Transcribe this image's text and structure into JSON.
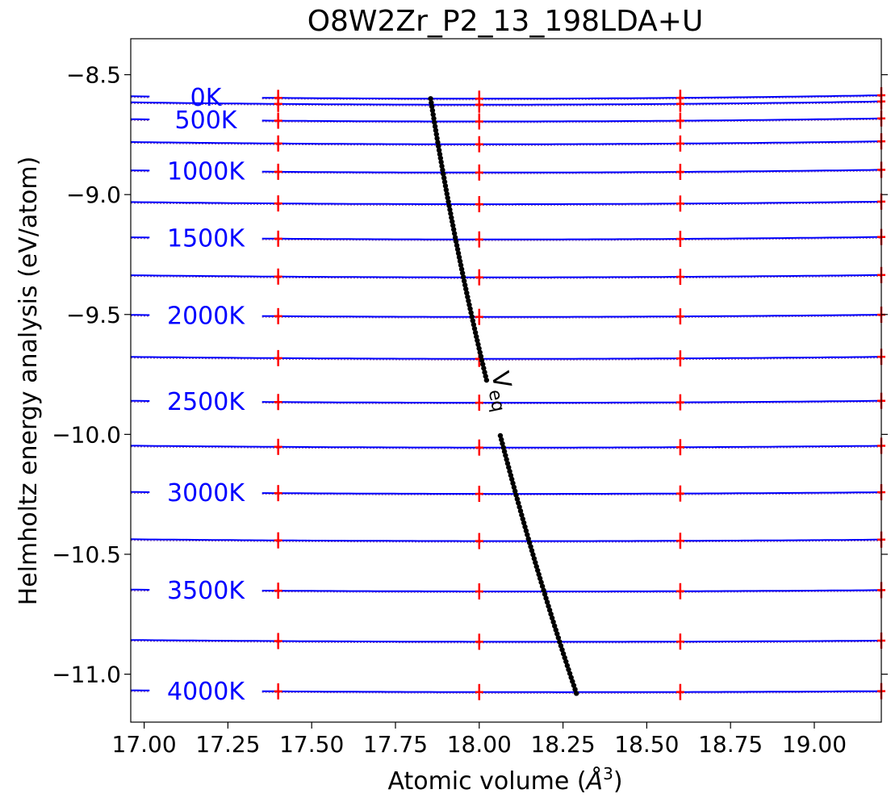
{
  "chart_data": {
    "type": "line",
    "title": "O8W2Zr_P2_13_198LDA+U",
    "xlabel_prefix": "Atomic volume (",
    "xlabel_unit": "Å",
    "xlabel_exp": "3",
    "xlabel_suffix": ")",
    "ylabel": "Helmholtz energy analysis (eV/atom)",
    "xlim": [
      16.96,
      19.2
    ],
    "ylim": [
      -11.2,
      -8.35
    ],
    "xticks": [
      17.0,
      17.25,
      17.5,
      17.75,
      18.0,
      18.25,
      18.5,
      18.75,
      19.0
    ],
    "xtick_labels": [
      "17.00",
      "17.25",
      "17.50",
      "17.75",
      "18.00",
      "18.25",
      "18.50",
      "18.75",
      "19.00"
    ],
    "yticks": [
      -8.5,
      -9.0,
      -9.5,
      -10.0,
      -10.5,
      -11.0
    ],
    "ytick_labels": [
      "−8.5",
      "−9.0",
      "−9.5",
      "−10.0",
      "−10.5",
      "−11.0"
    ],
    "sample_volumes": [
      17.4,
      18.0,
      18.6,
      19.2
    ],
    "line_color": "#0000ff",
    "marker_color": "#ff0000",
    "veq_color": "#000000",
    "isotherms": [
      {
        "T": 0,
        "a": 0.0096,
        "v0": 17.985,
        "f0": -8.6
      },
      {
        "T": 250,
        "a": 0.0092,
        "v0": 17.99,
        "f0": -8.625
      },
      {
        "T": 500,
        "a": 0.0088,
        "v0": 18.0,
        "f0": -8.695
      },
      {
        "T": 750,
        "a": 0.0085,
        "v0": 18.01,
        "f0": -8.79
      },
      {
        "T": 1000,
        "a": 0.0082,
        "v0": 18.02,
        "f0": -8.908
      },
      {
        "T": 1250,
        "a": 0.0079,
        "v0": 18.03,
        "f0": -9.04
      },
      {
        "T": 1500,
        "a": 0.0076,
        "v0": 18.04,
        "f0": -9.187
      },
      {
        "T": 1750,
        "a": 0.0073,
        "v0": 18.05,
        "f0": -9.345
      },
      {
        "T": 2000,
        "a": 0.007,
        "v0": 18.06,
        "f0": -9.51
      },
      {
        "T": 2250,
        "a": 0.0067,
        "v0": 18.07,
        "f0": -9.685
      },
      {
        "T": 2500,
        "a": 0.0064,
        "v0": 18.08,
        "f0": -9.868
      },
      {
        "T": 2750,
        "a": 0.0061,
        "v0": 18.1,
        "f0": -10.055
      },
      {
        "T": 3000,
        "a": 0.0058,
        "v0": 18.12,
        "f0": -10.248
      },
      {
        "T": 3250,
        "a": 0.0055,
        "v0": 18.14,
        "f0": -10.445
      },
      {
        "T": 3500,
        "a": 0.0052,
        "v0": 18.17,
        "f0": -10.655
      },
      {
        "T": 3750,
        "a": 0.0049,
        "v0": 18.2,
        "f0": -10.865
      },
      {
        "T": 4000,
        "a": 0.0046,
        "v0": 18.25,
        "f0": -11.075
      }
    ],
    "isotherm_labels": [
      {
        "text": "0K",
        "T": 0
      },
      {
        "text": "500K",
        "T": 500
      },
      {
        "text": "1000K",
        "T": 1000
      },
      {
        "text": "1500K",
        "T": 1500
      },
      {
        "text": "2000K",
        "T": 2000
      },
      {
        "text": "2500K",
        "T": 2500
      },
      {
        "text": "3000K",
        "T": 3000
      },
      {
        "text": "3500K",
        "T": 3500
      },
      {
        "text": "4000K",
        "T": 4000
      }
    ],
    "veq_label_main": "V",
    "veq_label_sub": "eq",
    "veq_curve": {
      "v_start": 17.855,
      "f_start": -8.6,
      "v_end": 18.29,
      "f_end": -11.08,
      "gap_f_start": -9.78,
      "gap_f_end": -9.99
    }
  }
}
